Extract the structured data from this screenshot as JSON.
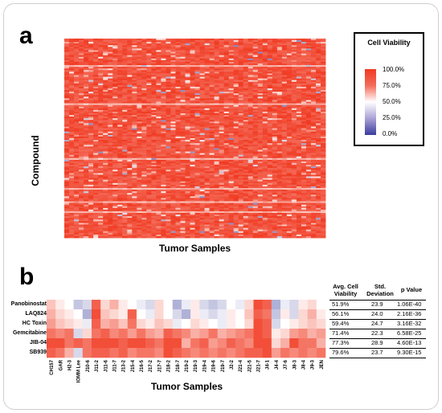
{
  "panel_a": {
    "letter": "a",
    "ylabel": "Compound",
    "xlabel": "Tumor Samples"
  },
  "panel_b": {
    "letter": "b",
    "xlabel": "Tumor Samples"
  },
  "legend": {
    "title": "Cell Viability",
    "ticks": [
      "100.0%",
      "75.0%",
      "50.0%",
      "25.0%",
      "0.0%"
    ]
  },
  "colors": {
    "high": "#f03a22",
    "mid": "#ffffff",
    "low": "#3a3d9c"
  },
  "table": {
    "headers": [
      "Avg. Cell Viability",
      "Std. Deviation",
      "p Value"
    ],
    "rows": [
      {
        "avg": "51.9%",
        "sd": "23.9",
        "p": "1.06E-40"
      },
      {
        "avg": "56.1%",
        "sd": "24.0",
        "p": "2.16E-36"
      },
      {
        "avg": "59.4%",
        "sd": "24.7",
        "p": "3.16E-32"
      },
      {
        "avg": "71.4%",
        "sd": "22.3",
        "p": "6.58E-25"
      },
      {
        "avg": "77.3%",
        "sd": "28.9",
        "p": "4.60E-13"
      },
      {
        "avg": "79.6%",
        "sd": "23.7",
        "p": "9.30E-15"
      }
    ]
  },
  "chart_data": [
    {
      "type": "heatmap",
      "title": "",
      "xlabel": "Tumor Samples",
      "ylabel": "Compound",
      "colorbar_label": "Cell Viability",
      "colorbar_range": [
        0,
        100
      ],
      "colorbar_ticks": [
        "0.0%",
        "25.0%",
        "50.0%",
        "75.0%",
        "100.0%"
      ],
      "note": "Dense heatmap of many compounds across tumor samples; values predominantly 75-100% viability (red) with scattered lighter/blue cells."
    },
    {
      "type": "heatmap",
      "xlabel": "Tumor Samples",
      "categories": [
        "CH157",
        "GAR",
        "H2-3",
        "IOMM Lee",
        "J10-6",
        "J11-2",
        "J11-6",
        "J11-7",
        "J13-2",
        "J15-4",
        "J16-5",
        "J17-2",
        "J17-7",
        "J18-2",
        "J18-7",
        "J19-2",
        "J19-3",
        "J19-4",
        "J19-6",
        "J19-7",
        "J2-2",
        "J21-4",
        "J21-5",
        "J21-7",
        "J4-1",
        "J4-4",
        "J7-6",
        "J8-3",
        "J8-4",
        "J9-3",
        "JEN"
      ],
      "series": [
        {
          "name": "Panobinostat",
          "values": [
            65,
            55,
            50,
            35,
            40,
            90,
            60,
            70,
            55,
            50,
            45,
            40,
            60,
            50,
            30,
            45,
            55,
            40,
            35,
            40,
            50,
            45,
            60,
            95,
            90,
            30,
            45,
            40,
            55,
            60,
            50
          ]
        },
        {
          "name": "LAQ824",
          "values": [
            70,
            60,
            55,
            50,
            30,
            95,
            65,
            60,
            55,
            90,
            50,
            45,
            60,
            50,
            40,
            30,
            55,
            45,
            40,
            45,
            55,
            50,
            65,
            90,
            85,
            35,
            55,
            40,
            60,
            70,
            55
          ]
        },
        {
          "name": "HC Toxin",
          "values": [
            75,
            65,
            60,
            55,
            45,
            90,
            70,
            75,
            65,
            85,
            60,
            55,
            65,
            60,
            45,
            50,
            60,
            55,
            50,
            45,
            55,
            50,
            60,
            95,
            90,
            40,
            50,
            55,
            60,
            65,
            60
          ]
        },
        {
          "name": "Gemcitabine",
          "values": [
            85,
            80,
            85,
            40,
            60,
            85,
            90,
            80,
            85,
            75,
            85,
            75,
            70,
            90,
            85,
            80,
            70,
            75,
            85,
            70,
            75,
            80,
            85,
            95,
            90,
            55,
            60,
            75,
            80,
            70,
            75
          ]
        },
        {
          "name": "JIB-04",
          "values": [
            95,
            95,
            85,
            90,
            85,
            95,
            95,
            95,
            90,
            95,
            95,
            90,
            85,
            95,
            95,
            70,
            85,
            90,
            75,
            80,
            90,
            85,
            80,
            95,
            95,
            60,
            70,
            95,
            85,
            85,
            70
          ]
        },
        {
          "name": "SB939",
          "values": [
            90,
            85,
            70,
            40,
            85,
            90,
            90,
            85,
            90,
            80,
            85,
            85,
            80,
            95,
            90,
            85,
            80,
            85,
            80,
            85,
            80,
            85,
            90,
            90,
            95,
            75,
            85,
            80,
            85,
            80,
            85
          ]
        }
      ],
      "colorbar_range": [
        0,
        100
      ]
    }
  ]
}
